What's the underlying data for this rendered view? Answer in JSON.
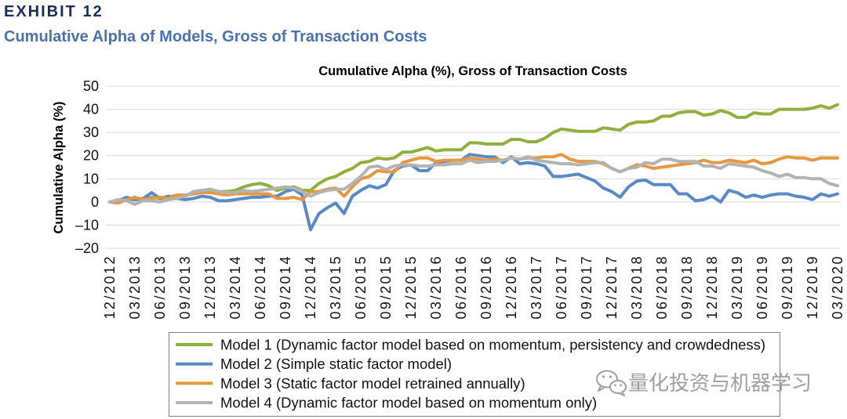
{
  "exhibit": {
    "label": "EXHIBIT 12",
    "subtitle": "Cumulative Alpha of Models, Gross of Transaction Costs"
  },
  "watermark": {
    "icon": "wechat-icon",
    "text": "量化投资与机器学习"
  },
  "chart_data": {
    "type": "line",
    "title": "Cumulative Alpha (%), Gross of Transaction Costs",
    "ylabel": "Cumulative Alpha (%)",
    "ylim": [
      -20,
      50
    ],
    "yticks": [
      50,
      40,
      30,
      20,
      10,
      0,
      -10,
      -20
    ],
    "grid": true,
    "xticks": [
      "12/2012",
      "03/2013",
      "06/2013",
      "09/2013",
      "12/2013",
      "03/2014",
      "06/2014",
      "09/2014",
      "12/2014",
      "03/2015",
      "06/2015",
      "09/2015",
      "12/2015",
      "03/2016",
      "06/2016",
      "09/2016",
      "12/2016",
      "03/2017",
      "06/2017",
      "09/2017",
      "12/2017",
      "03/2018",
      "06/2018",
      "09/2018",
      "12/2018",
      "03/2019",
      "06/2019",
      "09/2019",
      "12/2019",
      "03/2020"
    ],
    "series": [
      {
        "name": "Model 1 (Dynamic factor model based on momentum, persistency and crowdedness)",
        "color": "#8fb03e",
        "values": [
          0,
          0.5,
          1,
          1,
          1,
          2,
          1.5,
          2,
          3,
          2.5,
          4,
          5,
          5,
          4.5,
          4.5,
          5,
          6.5,
          7.5,
          8,
          7,
          5,
          6,
          6.5,
          5,
          5,
          8,
          10,
          11,
          13,
          14.5,
          17,
          17.5,
          19,
          18.5,
          19,
          21.5,
          21.5,
          22.5,
          23.5,
          22,
          22.5,
          22.5,
          22.5,
          25.5,
          25.5,
          25,
          25,
          25,
          27,
          27,
          26,
          26,
          27.5,
          30,
          31.5,
          31,
          30.5,
          30.5,
          30.5,
          32,
          31.5,
          31,
          33.5,
          34.5,
          34.5,
          35,
          37,
          37,
          38.5,
          39,
          39,
          37.5,
          38,
          39.5,
          38.5,
          36.5,
          36.5,
          38.5,
          38,
          38,
          40,
          40,
          40,
          40,
          40.5,
          41.5,
          40.5,
          42
        ]
      },
      {
        "name": "Model 2 (Simple static factor model)",
        "color": "#5a8ac6",
        "values": [
          0,
          0.5,
          2,
          1,
          1.5,
          4,
          1.5,
          2.5,
          1.5,
          1,
          1.5,
          2.5,
          2,
          0.5,
          0.5,
          1,
          1.5,
          2,
          2,
          2.5,
          2.5,
          4.5,
          5.5,
          3,
          -12,
          -5,
          -2.5,
          -0.5,
          -5,
          2.5,
          5,
          7,
          6,
          7.5,
          13.5,
          15.5,
          16,
          13.5,
          13.5,
          17,
          17.5,
          18,
          18,
          20.5,
          20,
          19.5,
          19.5,
          17,
          19.5,
          16.5,
          17,
          16.5,
          15.5,
          11,
          11,
          11.5,
          12,
          10.5,
          9,
          6,
          4.5,
          2,
          6.5,
          9,
          9.5,
          7.5,
          7.5,
          7.5,
          3.5,
          3.5,
          0.5,
          1,
          2.5,
          0,
          5,
          4,
          2,
          3,
          2,
          3,
          3.5,
          3.5,
          2.5,
          2,
          1,
          3.5,
          2.5,
          3.5
        ]
      },
      {
        "name": "Model 3 (Static factor model retrained annually)",
        "color": "#e6973f",
        "values": [
          0,
          -0.5,
          1,
          2,
          1,
          1.5,
          2,
          1.5,
          3,
          3,
          3.5,
          4,
          4,
          3.5,
          3,
          3.5,
          3.5,
          3.5,
          3.5,
          3.5,
          1.5,
          1.5,
          2,
          1,
          4.5,
          4.5,
          5.5,
          6,
          2.5,
          6.5,
          10,
          11,
          13.5,
          13,
          13,
          17,
          18,
          19,
          19,
          17.5,
          18,
          18,
          18,
          19,
          18.5,
          18,
          18.5,
          18,
          19,
          18.5,
          19,
          19,
          19.5,
          19.5,
          20.5,
          18.5,
          17.5,
          17.5,
          17.5,
          16.5,
          14.5,
          13,
          14.5,
          16,
          15.5,
          14.5,
          15,
          15.5,
          16,
          16.5,
          17,
          18,
          17,
          17,
          18,
          17.5,
          17,
          18,
          16.5,
          17,
          18.5,
          19.5,
          19,
          19,
          18,
          19,
          19,
          19
        ]
      },
      {
        "name": "Model 4 (Dynamic factor model based on momentum only)",
        "color": "#b3b3b3",
        "values": [
          0,
          1,
          0.5,
          -1,
          0.5,
          0.5,
          0,
          1,
          1.5,
          2.5,
          4.5,
          5,
          5.5,
          4.5,
          4,
          4,
          5,
          4.5,
          5,
          5.5,
          6,
          6.5,
          6,
          4.5,
          2.5,
          4,
          5,
          5.5,
          5.5,
          8,
          11,
          15,
          15.5,
          14,
          15.5,
          16,
          16,
          15.5,
          15.5,
          16,
          16,
          16.5,
          16.5,
          18,
          17,
          17.5,
          17.5,
          18,
          19,
          18.5,
          19.5,
          18,
          17.5,
          17,
          16.5,
          16.5,
          16,
          16.5,
          17,
          17,
          14.5,
          13,
          14.5,
          15,
          17,
          16.5,
          18.5,
          18.5,
          17.5,
          17.5,
          17.5,
          15.5,
          15.5,
          14.5,
          16.5,
          16,
          15.5,
          15,
          13.5,
          12.5,
          11,
          12,
          10.5,
          10.5,
          10,
          10,
          8,
          7
        ]
      }
    ]
  }
}
